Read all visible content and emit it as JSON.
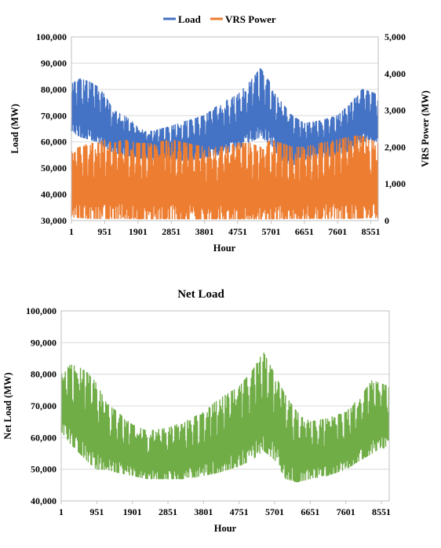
{
  "chart_data": [
    {
      "type": "line",
      "title": "",
      "legend": {
        "position": "top",
        "entries": [
          "Load",
          "VRS Power"
        ]
      },
      "xlabel": "Hour",
      "ylabel": "Load (MW)",
      "y2label": "VRS Power (MW)",
      "x_ticks": [
        "1",
        "951",
        "1901",
        "2851",
        "3801",
        "4751",
        "5701",
        "6651",
        "7601",
        "8551"
      ],
      "xlim": [
        1,
        8760
      ],
      "ylim": [
        30000,
        100000
      ],
      "y_ticks": [
        "30,000",
        "40,000",
        "50,000",
        "60,000",
        "70,000",
        "80,000",
        "90,000",
        "100,000"
      ],
      "y2lim": [
        0,
        5000
      ],
      "y2_ticks": [
        "0",
        "1,000",
        "2,000",
        "3,000",
        "4,000",
        "5,000"
      ],
      "grid": true,
      "series": [
        {
          "name": "Load",
          "axis": "left",
          "color": "#4472C4",
          "x": [
            1,
            250,
            500,
            750,
            950,
            1200,
            1500,
            1900,
            2300,
            2850,
            3300,
            3800,
            4200,
            4750,
            5100,
            5400,
            5700,
            6000,
            6300,
            6650,
            7100,
            7600,
            8000,
            8300,
            8550,
            8760
          ],
          "daily_max": [
            82000,
            84000,
            83000,
            81000,
            78000,
            72000,
            70000,
            66000,
            64000,
            66000,
            68000,
            70000,
            74000,
            78000,
            83000,
            88000,
            82000,
            75000,
            70000,
            67000,
            68000,
            70000,
            75000,
            80000,
            79000,
            78000
          ],
          "daily_min": [
            64000,
            62000,
            61000,
            60000,
            58000,
            56000,
            55000,
            54000,
            53000,
            53000,
            53000,
            54000,
            55000,
            57000,
            60000,
            62000,
            59000,
            53000,
            51000,
            53000,
            54000,
            55000,
            57000,
            60000,
            61000,
            60000
          ]
        },
        {
          "name": "VRS Power",
          "axis": "right",
          "color": "#ED7D31",
          "x": [
            1,
            250,
            500,
            750,
            950,
            1200,
            1500,
            1900,
            2300,
            2850,
            3300,
            3800,
            4200,
            4750,
            5100,
            5400,
            5700,
            6000,
            6300,
            6650,
            7100,
            7600,
            8000,
            8300,
            8550,
            8760
          ],
          "daily_max": [
            1900,
            2000,
            2100,
            2100,
            2200,
            2100,
            2200,
            2100,
            2100,
            2200,
            2100,
            2000,
            2000,
            2100,
            2100,
            2000,
            2200,
            2100,
            2000,
            2000,
            2100,
            2200,
            2300,
            2300,
            2200,
            2100
          ],
          "daily_min": [
            100,
            80,
            60,
            60,
            50,
            60,
            60,
            50,
            50,
            50,
            50,
            50,
            50,
            50,
            50,
            50,
            50,
            50,
            60,
            60,
            60,
            60,
            60,
            70,
            80,
            80
          ]
        }
      ]
    },
    {
      "type": "line",
      "title": "Net Load",
      "xlabel": "Hour",
      "ylabel": "Net Load (MW)",
      "x_ticks": [
        "1",
        "951",
        "1901",
        "2851",
        "3801",
        "4751",
        "5701",
        "6651",
        "7601",
        "8551"
      ],
      "xlim": [
        1,
        8760
      ],
      "ylim": [
        40000,
        100000
      ],
      "y_ticks": [
        "40,000",
        "50,000",
        "60,000",
        "70,000",
        "80,000",
        "90,000",
        "100,000"
      ],
      "grid": true,
      "series": [
        {
          "name": "Net Load",
          "color": "#70AD47",
          "x": [
            1,
            250,
            500,
            750,
            950,
            1200,
            1500,
            1900,
            2300,
            2850,
            3300,
            3800,
            4200,
            4750,
            5100,
            5400,
            5700,
            6000,
            6300,
            6650,
            7100,
            7600,
            8000,
            8300,
            8550,
            8760
          ],
          "daily_max": [
            80000,
            83000,
            82000,
            80000,
            77000,
            71000,
            68000,
            64000,
            62000,
            63000,
            65000,
            68000,
            72000,
            76000,
            81000,
            87000,
            80000,
            73000,
            68000,
            65000,
            66000,
            68000,
            73000,
            78000,
            77000,
            76000
          ],
          "daily_min": [
            62000,
            58000,
            55000,
            52000,
            50000,
            50000,
            49000,
            48000,
            47000,
            47000,
            47000,
            48000,
            49000,
            51000,
            53000,
            56000,
            53000,
            47000,
            46000,
            47000,
            48000,
            50000,
            53000,
            55000,
            57000,
            56000
          ]
        }
      ]
    }
  ]
}
